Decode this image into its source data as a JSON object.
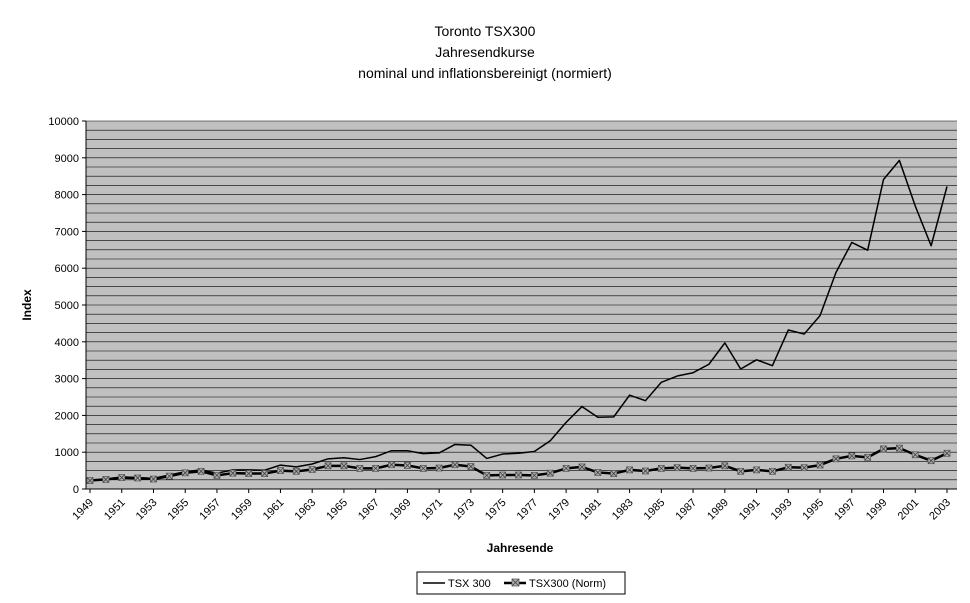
{
  "chart_data": {
    "type": "line",
    "title": [
      "Toronto TSX300",
      "Jahresendkurse",
      "nominal und inflationsbereinigt  (normiert)"
    ],
    "xlabel": "Jahresende",
    "ylabel": "Index",
    "ylim": [
      0,
      10000
    ],
    "y_ticks": [
      0,
      1000,
      2000,
      3000,
      4000,
      5000,
      6000,
      7000,
      8000,
      9000,
      10000
    ],
    "x_tick_labels": [
      "1949",
      "1951",
      "1953",
      "1955",
      "1957",
      "1959",
      "1961",
      "1963",
      "1965",
      "1967",
      "1969",
      "1971",
      "1973",
      "1975",
      "1977",
      "1979",
      "1981",
      "1983",
      "1985",
      "1987",
      "1989",
      "1991",
      "1993",
      "1995",
      "1997",
      "1999",
      "2001",
      "2003"
    ],
    "x": [
      1949,
      1950,
      1951,
      1952,
      1953,
      1954,
      1955,
      1956,
      1957,
      1958,
      1959,
      1960,
      1961,
      1962,
      1963,
      1964,
      1965,
      1966,
      1967,
      1968,
      1969,
      1970,
      1971,
      1972,
      1973,
      1974,
      1975,
      1976,
      1977,
      1978,
      1979,
      1980,
      1981,
      1982,
      1983,
      1984,
      1985,
      1986,
      1987,
      1988,
      1989,
      1990,
      1991,
      1992,
      1993,
      1994,
      1995,
      1996,
      1997,
      1998,
      1999,
      2000,
      2001,
      2002,
      2003
    ],
    "grid": true,
    "plot_background": "#c0c0c0",
    "legend_position": "bottom",
    "series": [
      {
        "name": "TSX 300",
        "color": "#000000",
        "marker": "none",
        "values": [
          230,
          270,
          330,
          310,
          290,
          380,
          470,
          520,
          430,
          520,
          520,
          510,
          650,
          600,
          680,
          820,
          850,
          800,
          880,
          1040,
          1040,
          960,
          980,
          1210,
          1190,
          830,
          950,
          970,
          1020,
          1310,
          1810,
          2240,
          1950,
          1960,
          2550,
          2400,
          2900,
          3070,
          3160,
          3390,
          3970,
          3260,
          3510,
          3350,
          4320,
          4210,
          4710,
          5880,
          6700,
          6490,
          8410,
          8930,
          7690,
          6610,
          8220
        ]
      },
      {
        "name": "TSX300 (Norm)",
        "color": "#000000",
        "marker": "x",
        "values": [
          230,
          260,
          310,
          300,
          270,
          350,
          440,
          480,
          370,
          430,
          420,
          420,
          500,
          480,
          530,
          630,
          630,
          560,
          560,
          660,
          640,
          560,
          570,
          660,
          610,
          370,
          380,
          380,
          370,
          430,
          560,
          600,
          450,
          420,
          520,
          490,
          560,
          580,
          560,
          570,
          630,
          480,
          520,
          480,
          590,
          580,
          650,
          820,
          900,
          860,
          1090,
          1110,
          930,
          770,
          970
        ]
      }
    ]
  }
}
